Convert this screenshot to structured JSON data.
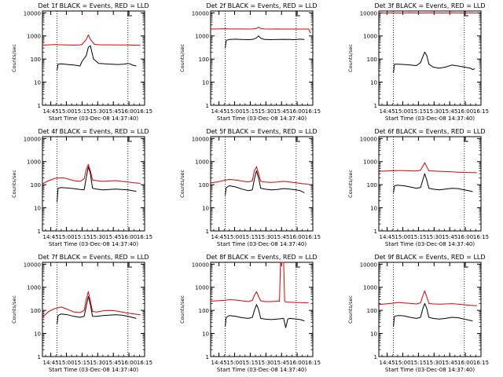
{
  "colors": {
    "events": "#000000",
    "lld": "#e00000",
    "frame": "#000000",
    "background": "#ffffff"
  },
  "shared": {
    "ylabel": "Counts/sec",
    "xlabel": "Start Time (03-Dec-08 14:37:40)",
    "x_ticks": [
      "14:45",
      "15:00",
      "15:15",
      "15:30",
      "15:45",
      "16:00",
      "16:15"
    ],
    "y_ticks": [
      "1",
      "10",
      "100",
      "1000",
      "10000"
    ],
    "ylim": [
      1,
      12000
    ],
    "y_scale": "log",
    "xlim_minutes_after_1437": [
      0,
      98
    ],
    "dotted_marks_time": [
      "14:51",
      "15:59"
    ]
  },
  "chart_data": [
    {
      "type": "line",
      "title": "Det 1f BLACK = Events, RED = LLD",
      "series": [
        {
          "name": "Events",
          "color": "black",
          "x": [
            14,
            15,
            18,
            24,
            30,
            36,
            38,
            42,
            44,
            46,
            49,
            54,
            60,
            66,
            72,
            78,
            82,
            84,
            86,
            90
          ],
          "y": [
            32,
            60,
            62,
            58,
            55,
            50,
            80,
            140,
            320,
            380,
            100,
            65,
            62,
            60,
            58,
            60,
            65,
            62,
            55,
            50
          ]
        },
        {
          "name": "LLD",
          "color": "red",
          "x": [
            0,
            6,
            12,
            20,
            30,
            36,
            38,
            42,
            44,
            46,
            50,
            56,
            64,
            72,
            80,
            88,
            92,
            94
          ],
          "y": [
            400,
            410,
            420,
            410,
            400,
            410,
            430,
            700,
            1100,
            700,
            430,
            410,
            410,
            405,
            405,
            400,
            395,
            395
          ]
        }
      ]
    },
    {
      "type": "line",
      "title": "Det 2f BLACK = Events, RED = LLD",
      "series": [
        {
          "name": "Events",
          "color": "black",
          "x": [
            14,
            15,
            18,
            24,
            30,
            36,
            40,
            44,
            46,
            48,
            52,
            58,
            64,
            70,
            76,
            80,
            82,
            86,
            90
          ],
          "y": [
            300,
            650,
            700,
            720,
            700,
            690,
            700,
            820,
            1000,
            800,
            700,
            690,
            700,
            710,
            700,
            690,
            700,
            720,
            700
          ]
        },
        {
          "name": "LLD",
          "color": "red",
          "x": [
            0,
            6,
            12,
            20,
            30,
            36,
            40,
            44,
            46,
            48,
            52,
            58,
            64,
            70,
            76,
            82,
            86,
            90,
            94,
            96
          ],
          "y": [
            2000,
            2000,
            2050,
            2000,
            2000,
            1990,
            2000,
            2100,
            2400,
            2100,
            2000,
            1990,
            2000,
            1990,
            1980,
            1980,
            1980,
            1980,
            1980,
            1300
          ]
        }
      ]
    },
    {
      "type": "line",
      "title": "Det 3f BLACK = Events, RED = LLD",
      "series": [
        {
          "name": "Events",
          "color": "black",
          "x": [
            14,
            15,
            18,
            24,
            30,
            36,
            40,
            42,
            44,
            46,
            48,
            52,
            58,
            64,
            70,
            76,
            82,
            88,
            90,
            92
          ],
          "y": [
            25,
            60,
            60,
            58,
            55,
            52,
            70,
            120,
            200,
            140,
            60,
            45,
            40,
            45,
            55,
            50,
            45,
            40,
            35,
            38
          ]
        },
        {
          "name": "LLD",
          "color": "red",
          "x": [
            0,
            6,
            12,
            20,
            30,
            40,
            50,
            60,
            70,
            80,
            88,
            94
          ],
          "y": [
            10000,
            9800,
            10000,
            9900,
            10000,
            9900,
            10000,
            9900,
            10000,
            9900,
            10000,
            9900
          ]
        }
      ]
    },
    {
      "type": "line",
      "title": "Det 4f BLACK = Events, RED = LLD",
      "series": [
        {
          "name": "Events",
          "color": "black",
          "x": [
            14,
            15,
            18,
            24,
            30,
            36,
            40,
            42,
            44,
            46,
            48,
            52,
            58,
            64,
            70,
            76,
            82,
            86,
            90
          ],
          "y": [
            18,
            70,
            75,
            72,
            68,
            62,
            60,
            200,
            600,
            300,
            70,
            65,
            60,
            62,
            65,
            62,
            60,
            55,
            52
          ]
        },
        {
          "name": "LLD",
          "color": "red",
          "x": [
            0,
            6,
            12,
            20,
            26,
            30,
            36,
            40,
            42,
            44,
            46,
            48,
            52,
            58,
            64,
            70,
            76,
            82,
            88,
            94
          ],
          "y": [
            110,
            150,
            190,
            200,
            170,
            150,
            140,
            180,
            450,
            750,
            400,
            160,
            150,
            140,
            145,
            150,
            140,
            130,
            120,
            115
          ]
        }
      ]
    },
    {
      "type": "line",
      "title": "Det 5f BLACK = Events, RED = LLD",
      "series": [
        {
          "name": "Events",
          "color": "black",
          "x": [
            14,
            15,
            18,
            24,
            30,
            36,
            40,
            42,
            44,
            46,
            48,
            52,
            58,
            64,
            70,
            76,
            82,
            86,
            90
          ],
          "y": [
            35,
            75,
            90,
            80,
            65,
            55,
            60,
            180,
            400,
            200,
            70,
            65,
            60,
            62,
            68,
            65,
            60,
            55,
            45
          ]
        },
        {
          "name": "LLD",
          "color": "red",
          "x": [
            0,
            6,
            12,
            18,
            24,
            30,
            36,
            40,
            42,
            44,
            46,
            48,
            52,
            58,
            64,
            70,
            76,
            82,
            88,
            94
          ],
          "y": [
            120,
            130,
            150,
            170,
            160,
            145,
            130,
            150,
            400,
            600,
            300,
            140,
            130,
            125,
            130,
            140,
            130,
            120,
            110,
            105
          ]
        }
      ]
    },
    {
      "type": "line",
      "title": "Det 6f BLACK = Events, RED = LLD",
      "series": [
        {
          "name": "Events",
          "color": "black",
          "x": [
            14,
            15,
            18,
            24,
            30,
            36,
            40,
            42,
            44,
            46,
            48,
            52,
            58,
            64,
            70,
            76,
            82,
            86,
            90
          ],
          "y": [
            45,
            90,
            95,
            90,
            80,
            70,
            75,
            150,
            300,
            160,
            70,
            65,
            60,
            65,
            70,
            68,
            60,
            55,
            50
          ]
        },
        {
          "name": "LLD",
          "color": "red",
          "x": [
            0,
            6,
            12,
            20,
            30,
            36,
            40,
            42,
            44,
            46,
            48,
            52,
            58,
            64,
            70,
            76,
            82,
            88,
            94
          ],
          "y": [
            380,
            390,
            400,
            410,
            400,
            390,
            420,
            600,
            900,
            600,
            400,
            390,
            380,
            370,
            360,
            350,
            340,
            335,
            330
          ]
        }
      ]
    },
    {
      "type": "line",
      "title": "Det 7f BLACK = Events, RED = LLD",
      "series": [
        {
          "name": "Events",
          "color": "black",
          "x": [
            14,
            15,
            18,
            24,
            30,
            36,
            40,
            42,
            44,
            46,
            48,
            52,
            58,
            64,
            70,
            76,
            82,
            86,
            90
          ],
          "y": [
            25,
            60,
            70,
            65,
            55,
            50,
            55,
            150,
            400,
            180,
            55,
            55,
            60,
            62,
            65,
            62,
            55,
            50,
            45
          ]
        },
        {
          "name": "LLD",
          "color": "red",
          "x": [
            0,
            6,
            12,
            18,
            24,
            30,
            36,
            40,
            42,
            44,
            46,
            48,
            52,
            58,
            64,
            70,
            76,
            82,
            88,
            94
          ],
          "y": [
            50,
            90,
            120,
            140,
            110,
            85,
            80,
            100,
            300,
            650,
            250,
            90,
            85,
            95,
            100,
            95,
            85,
            75,
            70,
            65
          ]
        }
      ]
    },
    {
      "type": "line",
      "title": "Det 8f BLACK = Events, RED = LLD",
      "series": [
        {
          "name": "Events",
          "color": "black",
          "x": [
            14,
            15,
            18,
            24,
            30,
            36,
            40,
            42,
            44,
            46,
            48,
            52,
            58,
            64,
            70,
            72,
            74,
            76,
            82,
            86,
            90
          ],
          "y": [
            20,
            50,
            60,
            55,
            48,
            45,
            50,
            100,
            180,
            110,
            45,
            42,
            40,
            42,
            45,
            18,
            42,
            45,
            42,
            40,
            35
          ]
        },
        {
          "name": "LLD",
          "color": "red",
          "x": [
            0,
            6,
            12,
            18,
            24,
            30,
            36,
            40,
            42,
            44,
            46,
            48,
            52,
            58,
            64,
            66,
            67,
            70,
            71,
            72,
            76,
            82,
            88,
            94
          ],
          "y": [
            250,
            260,
            270,
            290,
            280,
            260,
            240,
            270,
            450,
            650,
            400,
            260,
            240,
            240,
            250,
            250,
            12000,
            12000,
            250,
            230,
            225,
            220,
            215,
            210
          ]
        }
      ]
    },
    {
      "type": "line",
      "title": "Det 9f BLACK = Events, RED = LLD",
      "series": [
        {
          "name": "Events",
          "color": "black",
          "x": [
            14,
            15,
            18,
            24,
            30,
            36,
            40,
            42,
            44,
            46,
            48,
            52,
            58,
            64,
            70,
            76,
            82,
            86,
            90
          ],
          "y": [
            20,
            55,
            60,
            58,
            50,
            45,
            50,
            110,
            200,
            120,
            50,
            45,
            42,
            45,
            50,
            48,
            42,
            38,
            35
          ]
        },
        {
          "name": "LLD",
          "color": "red",
          "x": [
            0,
            6,
            12,
            18,
            24,
            30,
            36,
            40,
            42,
            44,
            46,
            48,
            52,
            58,
            64,
            70,
            76,
            82,
            88,
            94
          ],
          "y": [
            180,
            190,
            200,
            220,
            210,
            200,
            190,
            210,
            400,
            700,
            380,
            200,
            190,
            185,
            190,
            195,
            185,
            175,
            165,
            160
          ]
        }
      ]
    }
  ]
}
